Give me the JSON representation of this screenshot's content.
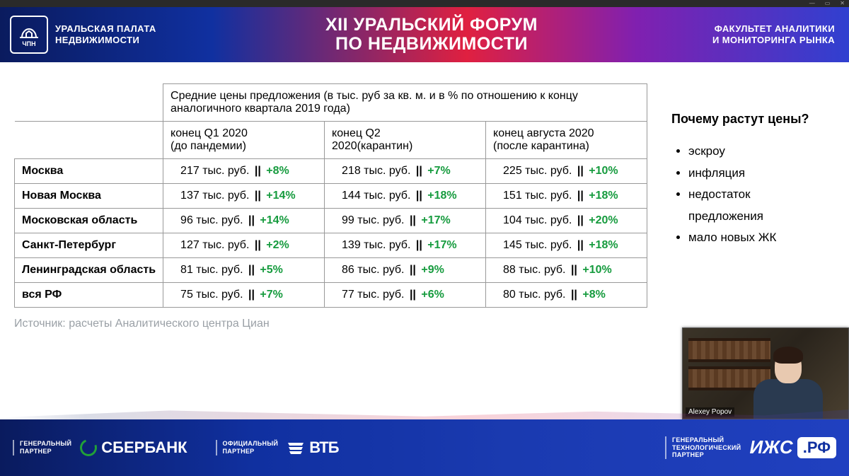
{
  "window": {
    "min": "—",
    "max": "▭",
    "close": "✕"
  },
  "header": {
    "org_line1": "УРАЛЬСКАЯ ПАЛАТА",
    "org_line2": "НЕДВИЖИМОСТИ",
    "logo_abbr": "ЧПН",
    "title_line1": "XII УРАЛЬСКИЙ ФОРУМ",
    "title_line2": "ПО НЕДВИЖИМОСТИ",
    "right_line1": "ФАКУЛЬТЕТ АНАЛИТИКИ",
    "right_line2": "И МОНИТОРИНГА РЫНКА"
  },
  "table": {
    "caption": "Средние цены предложения (в тыс. руб за кв. м. и в % по отношению к концу аналогичного квартала 2019 года)",
    "columns": [
      {
        "line1": "конец Q1 2020",
        "line2": "(до пандемии)"
      },
      {
        "line1": "конец Q2",
        "line2": "2020(карантин)"
      },
      {
        "line1": "конец августа 2020",
        "line2": "(после карантина)"
      }
    ],
    "separator": "||",
    "unit": "тыс. руб.",
    "rows": [
      {
        "label": "Москва",
        "cells": [
          {
            "price": "217",
            "pct": "+8%"
          },
          {
            "price": "218",
            "pct": "+7%"
          },
          {
            "price": "225",
            "pct": "+10%"
          }
        ]
      },
      {
        "label": "Новая Москва",
        "cells": [
          {
            "price": "137",
            "pct": "+14%"
          },
          {
            "price": "144",
            "pct": "+18%"
          },
          {
            "price": "151",
            "pct": "+18%"
          }
        ]
      },
      {
        "label": "Московская область",
        "cells": [
          {
            "price": "96",
            "pct": "+14%"
          },
          {
            "price": "99",
            "pct": "+17%"
          },
          {
            "price": "104",
            "pct": "+20%"
          }
        ]
      },
      {
        "label": "Санкт-Петербург",
        "cells": [
          {
            "price": "127",
            "pct": "+2%"
          },
          {
            "price": "139",
            "pct": "+17%"
          },
          {
            "price": "145",
            "pct": "+18%"
          }
        ]
      },
      {
        "label": "Ленинградская область",
        "cells": [
          {
            "price": "81",
            "pct": "+5%"
          },
          {
            "price": "86",
            "pct": "+9%"
          },
          {
            "price": "88",
            "pct": "+10%"
          }
        ]
      },
      {
        "label": "вся РФ",
        "cells": [
          {
            "price": "75",
            "pct": "+7%"
          },
          {
            "price": "77",
            "pct": "+6%"
          },
          {
            "price": "80",
            "pct": "+8%"
          }
        ]
      }
    ],
    "source": "Источник: расчеты Аналитического центра Циан"
  },
  "sidebar": {
    "title": "Почему растут цены?",
    "items": [
      "эскроу",
      "инфляция",
      "недостаток предложения",
      "мало новых ЖК"
    ]
  },
  "footer": {
    "partners": [
      {
        "label_l1": "ГЕНЕРАЛЬНЫЙ",
        "label_l2": "ПАРТНЕР",
        "name": "СБЕРБАНК",
        "kind": "sber"
      },
      {
        "label_l1": "ОФИЦИАЛЬНЫЙ",
        "label_l2": "ПАРТНЕР",
        "name": "ВТБ",
        "kind": "vtb"
      },
      {
        "label_l1": "ГЕНЕРАЛЬНЫЙ",
        "label_l2": "ТЕХНОЛОГИЧЕСКИЙ",
        "label_l3": "ПАРТНЕР",
        "name_left": "ИЖС",
        "name_right": ".РФ",
        "kind": "izhs"
      }
    ]
  },
  "webcam": {
    "name": "Alexey Popov"
  },
  "colors": {
    "pct_positive": "#169b3e",
    "border": "#999999",
    "muted": "#9aa0a6",
    "header_grad": [
      "#0a1b5e",
      "#1030a0",
      "#e02040",
      "#8020b0",
      "#3040d0"
    ]
  }
}
